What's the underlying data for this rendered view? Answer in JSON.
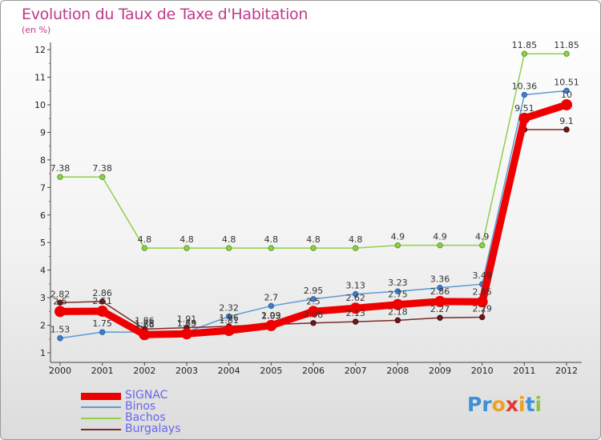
{
  "title": "Evolution du Taux de Taxe d'Habitation",
  "subtitle": "(en %)",
  "chart_data": {
    "type": "line",
    "title": "Evolution du Taux de Taxe d'Habitation",
    "subtitle": "(en %)",
    "xlabel": "",
    "ylabel": "",
    "categories": [
      "2000",
      "2001",
      "2002",
      "2003",
      "2004",
      "2005",
      "2006",
      "2007",
      "2008",
      "2009",
      "2010",
      "2011",
      "2012"
    ],
    "y_ticks": [
      "1",
      "2",
      "3",
      "4",
      "5",
      "6",
      "7",
      "8",
      "9",
      "10",
      "11",
      "12"
    ],
    "ylim": [
      1,
      12
    ],
    "grid": false,
    "legend_position": "bottom-left",
    "series": [
      {
        "name": "SIGNAC",
        "color": "#ee0000",
        "values": [
          2.5,
          2.51,
          1.66,
          1.69,
          1.81,
          1.99,
          2.5,
          2.62,
          2.75,
          2.86,
          2.85,
          9.51,
          10
        ],
        "labels": [
          "2.5",
          "2.51",
          "1.66",
          "1.69",
          "1.81",
          "1.99",
          "2.5",
          "2.62",
          "2.75",
          "2.86",
          "2.85",
          "9.51",
          "10"
        ]
      },
      {
        "name": "Binos",
        "color": "#5b9bd5",
        "values": [
          1.53,
          1.75,
          1.75,
          1.75,
          2.32,
          2.7,
          2.95,
          3.13,
          3.23,
          3.36,
          3.49,
          10.36,
          10.51
        ],
        "labels": [
          "1.53",
          "1.75",
          "1.75",
          "1.75",
          "2.32",
          "2.7",
          "2.95",
          "3.13",
          "3.23",
          "3.36",
          "3.49",
          "10.36",
          "10.51"
        ]
      },
      {
        "name": "Bachos",
        "color": "#8ed04a",
        "values": [
          7.38,
          7.38,
          4.8,
          4.8,
          4.8,
          4.8,
          4.8,
          4.8,
          4.9,
          4.9,
          4.9,
          11.85,
          11.85
        ],
        "labels": [
          "7.38",
          "7.38",
          "4.8",
          "4.8",
          "4.8",
          "4.8",
          "4.8",
          "4.8",
          "4.9",
          "4.9",
          "4.9",
          "11.85",
          "11.85"
        ]
      },
      {
        "name": "Burgalays",
        "color": "#7a2a2a",
        "values": [
          2.82,
          2.86,
          1.86,
          1.91,
          1.96,
          2.03,
          2.08,
          2.13,
          2.18,
          2.27,
          2.29,
          9.1,
          9.1
        ],
        "labels": [
          "2.82",
          "2.86",
          "1.86",
          "1.91",
          "1.96",
          "2.03",
          "2.08",
          "2.13",
          "2.18",
          "2.27",
          "2.29",
          "",
          "9.1"
        ]
      }
    ]
  },
  "legend": {
    "items": [
      {
        "label": "SIGNAC"
      },
      {
        "label": "Binos"
      },
      {
        "label": "Bachos"
      },
      {
        "label": "Burgalays"
      }
    ]
  },
  "logo": {
    "text": "Proxiti",
    "letters": [
      {
        "ch": "P",
        "color": "#3f8fd9"
      },
      {
        "ch": "r",
        "color": "#3f8fd9"
      },
      {
        "ch": "o",
        "color": "#f0a020"
      },
      {
        "ch": "x",
        "color": "#e23a2a"
      },
      {
        "ch": "i",
        "color": "#f0a020"
      },
      {
        "ch": "t",
        "color": "#3f8fd9"
      },
      {
        "ch": "i",
        "color": "#8cc63f"
      }
    ]
  }
}
